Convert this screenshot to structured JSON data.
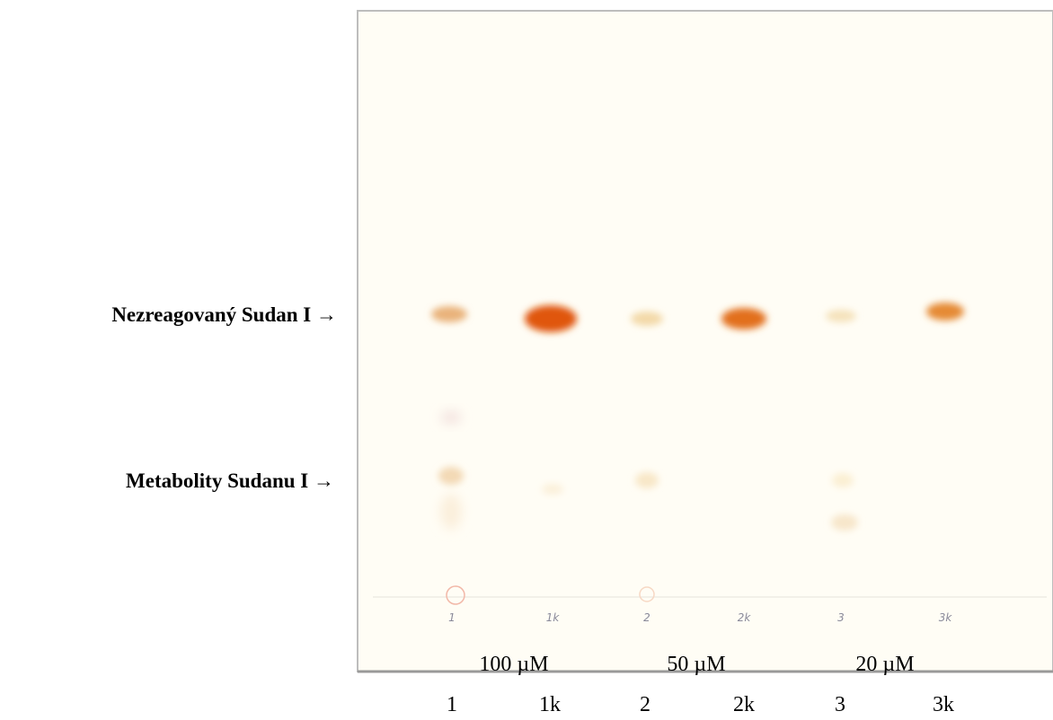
{
  "annotations": {
    "unreacted": "Nezreagovaný Sudan I →",
    "metabolites": "Metabolity Sudanu I →"
  },
  "plate": {
    "handwritten": [
      "1",
      "1k",
      "2",
      "2k",
      "3",
      "3k"
    ]
  },
  "concentrations": [
    "100 µM",
    "50 µM",
    "20 µM"
  ],
  "lanes": [
    "1",
    "1k",
    "2",
    "2k",
    "3",
    "3k"
  ]
}
